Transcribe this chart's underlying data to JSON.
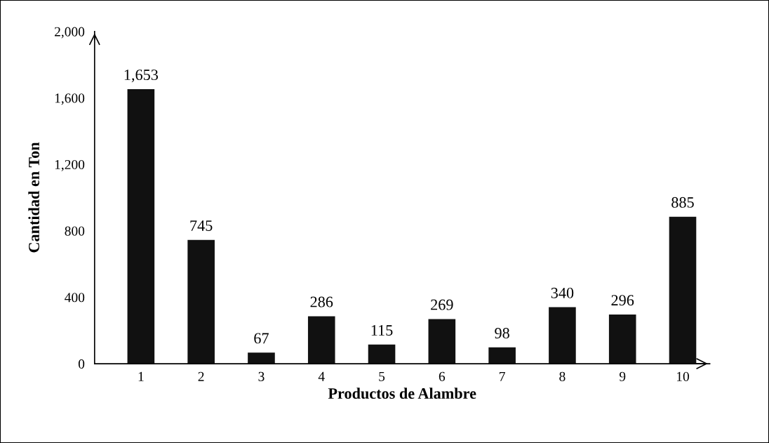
{
  "chart_data": {
    "type": "bar",
    "xlabel": "Productos de Alambre",
    "ylabel": "Cantidad en Ton",
    "categories": [
      "1",
      "2",
      "3",
      "4",
      "5",
      "6",
      "7",
      "8",
      "9",
      "10"
    ],
    "values": [
      1653,
      745,
      67,
      286,
      115,
      269,
      98,
      340,
      296,
      885
    ],
    "value_labels": [
      "1,653",
      "745",
      "67",
      "286",
      "115",
      "269",
      "98",
      "340",
      "296",
      "885"
    ],
    "color": "#111111",
    "ylim": [
      0,
      2000
    ],
    "yticks": [
      0,
      {
        "value": 400,
        "label": "400"
      },
      {
        "value": 800,
        "label": "800"
      },
      {
        "value": 1200,
        "label": "1,200"
      },
      {
        "value": 1600,
        "label": "1,600"
      },
      {
        "value": 2000,
        "label": "2,000"
      }
    ],
    "grid": false,
    "legend": false
  }
}
